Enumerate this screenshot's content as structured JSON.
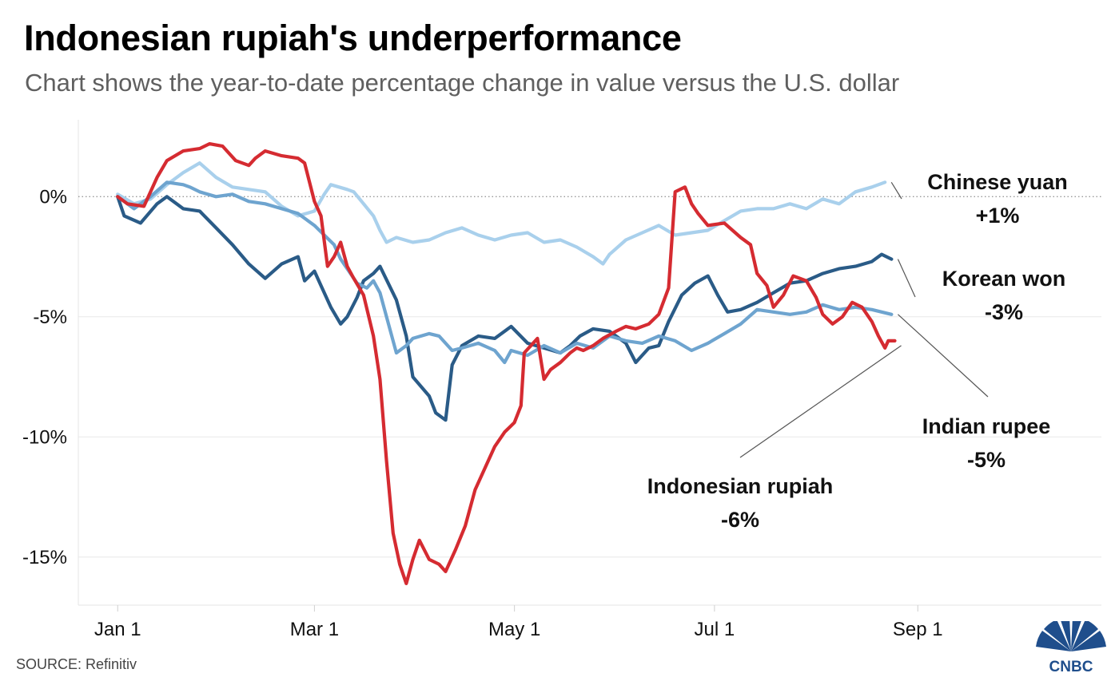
{
  "header": {
    "title": "Indonesian rupiah's underperformance",
    "subtitle": "Chart shows the year-to-date percentage change in value versus the U.S. dollar"
  },
  "footer": {
    "source": "SOURCE: Refinitiv",
    "logo_text": "CNBC"
  },
  "chart_data": {
    "type": "line",
    "xlabel": "",
    "ylabel": "",
    "x_ticks": [
      {
        "label": "Jan 1",
        "day": 0
      },
      {
        "label": "Mar 1",
        "day": 60
      },
      {
        "label": "May 1",
        "day": 121
      },
      {
        "label": "Jul 1",
        "day": 182
      },
      {
        "label": "Sep 1",
        "day": 244
      }
    ],
    "y_ticks": [
      {
        "label": "0%",
        "value": 0
      },
      {
        "label": "-5%",
        "value": -5
      },
      {
        "label": "-10%",
        "value": -10
      },
      {
        "label": "-15%",
        "value": -15
      }
    ],
    "xlim": [
      -12,
      300
    ],
    "ylim": [
      -17,
      3.2
    ],
    "zero_line": "dotted",
    "series": [
      {
        "name": "Chinese yuan",
        "end_label": "+1%",
        "color": "#a9d0ec",
        "points": [
          [
            0,
            0.1
          ],
          [
            5,
            -0.3
          ],
          [
            10,
            -0.1
          ],
          [
            15,
            0.5
          ],
          [
            20,
            1.0
          ],
          [
            25,
            1.4
          ],
          [
            30,
            0.8
          ],
          [
            35,
            0.4
          ],
          [
            40,
            0.3
          ],
          [
            45,
            0.2
          ],
          [
            50,
            -0.4
          ],
          [
            55,
            -0.8
          ],
          [
            60,
            -0.6
          ],
          [
            63,
            0.1
          ],
          [
            65,
            0.5
          ],
          [
            70,
            0.3
          ],
          [
            72,
            0.2
          ],
          [
            75,
            -0.3
          ],
          [
            78,
            -0.8
          ],
          [
            80,
            -1.4
          ],
          [
            82,
            -1.9
          ],
          [
            85,
            -1.7
          ],
          [
            90,
            -1.9
          ],
          [
            95,
            -1.8
          ],
          [
            100,
            -1.5
          ],
          [
            105,
            -1.3
          ],
          [
            110,
            -1.6
          ],
          [
            115,
            -1.8
          ],
          [
            120,
            -1.6
          ],
          [
            125,
            -1.5
          ],
          [
            130,
            -1.9
          ],
          [
            135,
            -1.8
          ],
          [
            140,
            -2.1
          ],
          [
            145,
            -2.5
          ],
          [
            148,
            -2.8
          ],
          [
            150,
            -2.4
          ],
          [
            155,
            -1.8
          ],
          [
            160,
            -1.5
          ],
          [
            165,
            -1.2
          ],
          [
            170,
            -1.6
          ],
          [
            175,
            -1.5
          ],
          [
            180,
            -1.4
          ],
          [
            185,
            -1.0
          ],
          [
            190,
            -0.6
          ],
          [
            195,
            -0.5
          ],
          [
            200,
            -0.5
          ],
          [
            205,
            -0.3
          ],
          [
            210,
            -0.5
          ],
          [
            215,
            -0.1
          ],
          [
            220,
            -0.3
          ],
          [
            225,
            0.2
          ],
          [
            230,
            0.4
          ],
          [
            234,
            0.6
          ]
        ]
      },
      {
        "name": "Korean won",
        "end_label": "-3%",
        "color": "#2a5b87",
        "points": [
          [
            0,
            0
          ],
          [
            2,
            -0.8
          ],
          [
            7,
            -1.1
          ],
          [
            12,
            -0.3
          ],
          [
            15,
            0
          ],
          [
            20,
            -0.5
          ],
          [
            25,
            -0.6
          ],
          [
            30,
            -1.3
          ],
          [
            35,
            -2.0
          ],
          [
            40,
            -2.8
          ],
          [
            45,
            -3.4
          ],
          [
            50,
            -2.8
          ],
          [
            55,
            -2.5
          ],
          [
            57,
            -3.5
          ],
          [
            60,
            -3.1
          ],
          [
            62,
            -3.7
          ],
          [
            65,
            -4.6
          ],
          [
            68,
            -5.3
          ],
          [
            70,
            -5.0
          ],
          [
            73,
            -4.2
          ],
          [
            75,
            -3.5
          ],
          [
            78,
            -3.2
          ],
          [
            80,
            -2.9
          ],
          [
            85,
            -4.3
          ],
          [
            88,
            -5.8
          ],
          [
            90,
            -7.5
          ],
          [
            95,
            -8.3
          ],
          [
            97,
            -9.0
          ],
          [
            100,
            -9.3
          ],
          [
            102,
            -7.0
          ],
          [
            105,
            -6.2
          ],
          [
            110,
            -5.8
          ],
          [
            115,
            -5.9
          ],
          [
            120,
            -5.4
          ],
          [
            125,
            -6.1
          ],
          [
            130,
            -6.3
          ],
          [
            135,
            -6.5
          ],
          [
            138,
            -6.2
          ],
          [
            141,
            -5.8
          ],
          [
            145,
            -5.5
          ],
          [
            150,
            -5.6
          ],
          [
            155,
            -6.1
          ],
          [
            158,
            -6.9
          ],
          [
            162,
            -6.3
          ],
          [
            165,
            -6.2
          ],
          [
            168,
            -5.2
          ],
          [
            172,
            -4.1
          ],
          [
            176,
            -3.6
          ],
          [
            180,
            -3.3
          ],
          [
            183,
            -4.1
          ],
          [
            186,
            -4.8
          ],
          [
            190,
            -4.7
          ],
          [
            195,
            -4.4
          ],
          [
            200,
            -4.0
          ],
          [
            205,
            -3.6
          ],
          [
            210,
            -3.5
          ],
          [
            215,
            -3.2
          ],
          [
            220,
            -3.0
          ],
          [
            225,
            -2.9
          ],
          [
            230,
            -2.7
          ],
          [
            233,
            -2.4
          ],
          [
            236,
            -2.6
          ]
        ]
      },
      {
        "name": "Indian rupee",
        "end_label": "-5%",
        "color": "#6ea4cf",
        "points": [
          [
            0,
            0
          ],
          [
            5,
            -0.5
          ],
          [
            10,
            0
          ],
          [
            15,
            0.6
          ],
          [
            20,
            0.5
          ],
          [
            22,
            0.4
          ],
          [
            25,
            0.2
          ],
          [
            30,
            0
          ],
          [
            35,
            0.1
          ],
          [
            40,
            -0.2
          ],
          [
            45,
            -0.3
          ],
          [
            50,
            -0.5
          ],
          [
            55,
            -0.7
          ],
          [
            58,
            -1.0
          ],
          [
            60,
            -1.2
          ],
          [
            63,
            -1.6
          ],
          [
            66,
            -2.0
          ],
          [
            68,
            -2.6
          ],
          [
            70,
            -3.0
          ],
          [
            73,
            -3.6
          ],
          [
            76,
            -3.8
          ],
          [
            78,
            -3.5
          ],
          [
            80,
            -4.0
          ],
          [
            85,
            -6.5
          ],
          [
            88,
            -6.2
          ],
          [
            90,
            -5.9
          ],
          [
            95,
            -5.7
          ],
          [
            98,
            -5.8
          ],
          [
            102,
            -6.4
          ],
          [
            105,
            -6.3
          ],
          [
            110,
            -6.1
          ],
          [
            115,
            -6.4
          ],
          [
            118,
            -6.9
          ],
          [
            120,
            -6.4
          ],
          [
            125,
            -6.6
          ],
          [
            130,
            -6.2
          ],
          [
            135,
            -6.5
          ],
          [
            140,
            -6.1
          ],
          [
            145,
            -6.3
          ],
          [
            150,
            -5.8
          ],
          [
            155,
            -6.0
          ],
          [
            160,
            -6.1
          ],
          [
            165,
            -5.8
          ],
          [
            170,
            -6.0
          ],
          [
            175,
            -6.4
          ],
          [
            180,
            -6.1
          ],
          [
            185,
            -5.7
          ],
          [
            190,
            -5.3
          ],
          [
            195,
            -4.7
          ],
          [
            200,
            -4.8
          ],
          [
            205,
            -4.9
          ],
          [
            210,
            -4.8
          ],
          [
            215,
            -4.5
          ],
          [
            220,
            -4.7
          ],
          [
            225,
            -4.6
          ],
          [
            230,
            -4.7
          ],
          [
            236,
            -4.9
          ]
        ]
      },
      {
        "name": "Indonesian rupiah",
        "end_label": "-6%",
        "color": "#d52b31",
        "points": [
          [
            0,
            0
          ],
          [
            3,
            -0.3
          ],
          [
            8,
            -0.4
          ],
          [
            12,
            0.8
          ],
          [
            15,
            1.5
          ],
          [
            20,
            1.9
          ],
          [
            25,
            2.0
          ],
          [
            28,
            2.2
          ],
          [
            32,
            2.1
          ],
          [
            36,
            1.5
          ],
          [
            40,
            1.3
          ],
          [
            42,
            1.6
          ],
          [
            45,
            1.9
          ],
          [
            50,
            1.7
          ],
          [
            55,
            1.6
          ],
          [
            57,
            1.4
          ],
          [
            60,
            -0.2
          ],
          [
            62,
            -0.8
          ],
          [
            64,
            -2.9
          ],
          [
            66,
            -2.5
          ],
          [
            68,
            -1.9
          ],
          [
            70,
            -2.9
          ],
          [
            72,
            -3.4
          ],
          [
            75,
            -4.1
          ],
          [
            78,
            -5.8
          ],
          [
            80,
            -7.6
          ],
          [
            82,
            -11.0
          ],
          [
            84,
            -14.0
          ],
          [
            86,
            -15.3
          ],
          [
            88,
            -16.1
          ],
          [
            90,
            -15.1
          ],
          [
            92,
            -14.3
          ],
          [
            95,
            -15.1
          ],
          [
            98,
            -15.3
          ],
          [
            100,
            -15.6
          ],
          [
            103,
            -14.7
          ],
          [
            106,
            -13.7
          ],
          [
            109,
            -12.2
          ],
          [
            112,
            -11.3
          ],
          [
            115,
            -10.4
          ],
          [
            118,
            -9.8
          ],
          [
            121,
            -9.4
          ],
          [
            123,
            -8.7
          ],
          [
            124,
            -6.5
          ],
          [
            126,
            -6.2
          ],
          [
            128,
            -5.9
          ],
          [
            130,
            -7.6
          ],
          [
            132,
            -7.2
          ],
          [
            135,
            -6.9
          ],
          [
            138,
            -6.5
          ],
          [
            140,
            -6.3
          ],
          [
            142,
            -6.4
          ],
          [
            145,
            -6.2
          ],
          [
            148,
            -5.9
          ],
          [
            152,
            -5.6
          ],
          [
            155,
            -5.4
          ],
          [
            158,
            -5.5
          ],
          [
            162,
            -5.3
          ],
          [
            165,
            -4.9
          ],
          [
            168,
            -3.8
          ],
          [
            170,
            0.2
          ],
          [
            173,
            0.4
          ],
          [
            175,
            -0.3
          ],
          [
            177,
            -0.7
          ],
          [
            180,
            -1.2
          ],
          [
            185,
            -1.1
          ],
          [
            190,
            -1.7
          ],
          [
            193,
            -2.0
          ],
          [
            195,
            -3.2
          ],
          [
            198,
            -3.7
          ],
          [
            200,
            -4.6
          ],
          [
            203,
            -4.1
          ],
          [
            206,
            -3.3
          ],
          [
            210,
            -3.5
          ],
          [
            213,
            -4.2
          ],
          [
            215,
            -4.9
          ],
          [
            218,
            -5.3
          ],
          [
            221,
            -5.0
          ],
          [
            224,
            -4.4
          ],
          [
            227,
            -4.6
          ],
          [
            230,
            -5.2
          ],
          [
            232,
            -5.8
          ],
          [
            234,
            -6.3
          ],
          [
            235,
            -6.0
          ],
          [
            237,
            -6.0
          ]
        ]
      }
    ],
    "annotations": [
      {
        "series": "Chinese yuan",
        "text": "Chinese yuan",
        "value_text": "+1%"
      },
      {
        "series": "Korean won",
        "text": "Korean won",
        "value_text": "-3%"
      },
      {
        "series": "Indian rupee",
        "text": "Indian rupee",
        "value_text": "-5%"
      },
      {
        "series": "Indonesian rupiah",
        "text": "Indonesian rupiah",
        "value_text": "-6%"
      }
    ]
  }
}
